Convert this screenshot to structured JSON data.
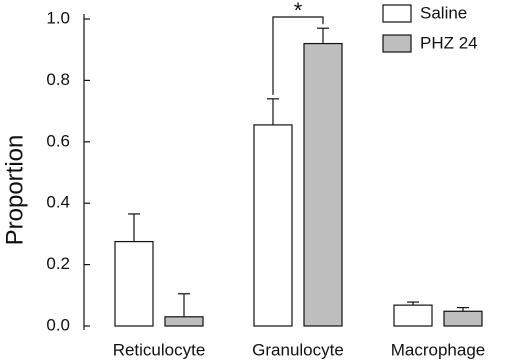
{
  "chart_data": {
    "type": "bar",
    "ylabel": "Proportion",
    "categories": [
      "Reticulocyte",
      "Granulocyte",
      "Macrophage"
    ],
    "series": [
      {
        "name": "Saline",
        "color": "#ffffff",
        "values": [
          0.275,
          0.655,
          0.068
        ],
        "errors": [
          0.09,
          0.085,
          0.01
        ]
      },
      {
        "name": "PHZ 24",
        "color": "#bebebe",
        "values": [
          0.03,
          0.92,
          0.048
        ],
        "errors": [
          0.075,
          0.05,
          0.012
        ]
      }
    ],
    "ylim": [
      0,
      1
    ],
    "yticks": [
      {
        "value": 0,
        "label": "0.0"
      },
      0.2,
      0.4,
      0.6,
      0.8,
      {
        "value": 1,
        "label": "1.0"
      }
    ],
    "legend": "top-right",
    "significance": "*"
  }
}
